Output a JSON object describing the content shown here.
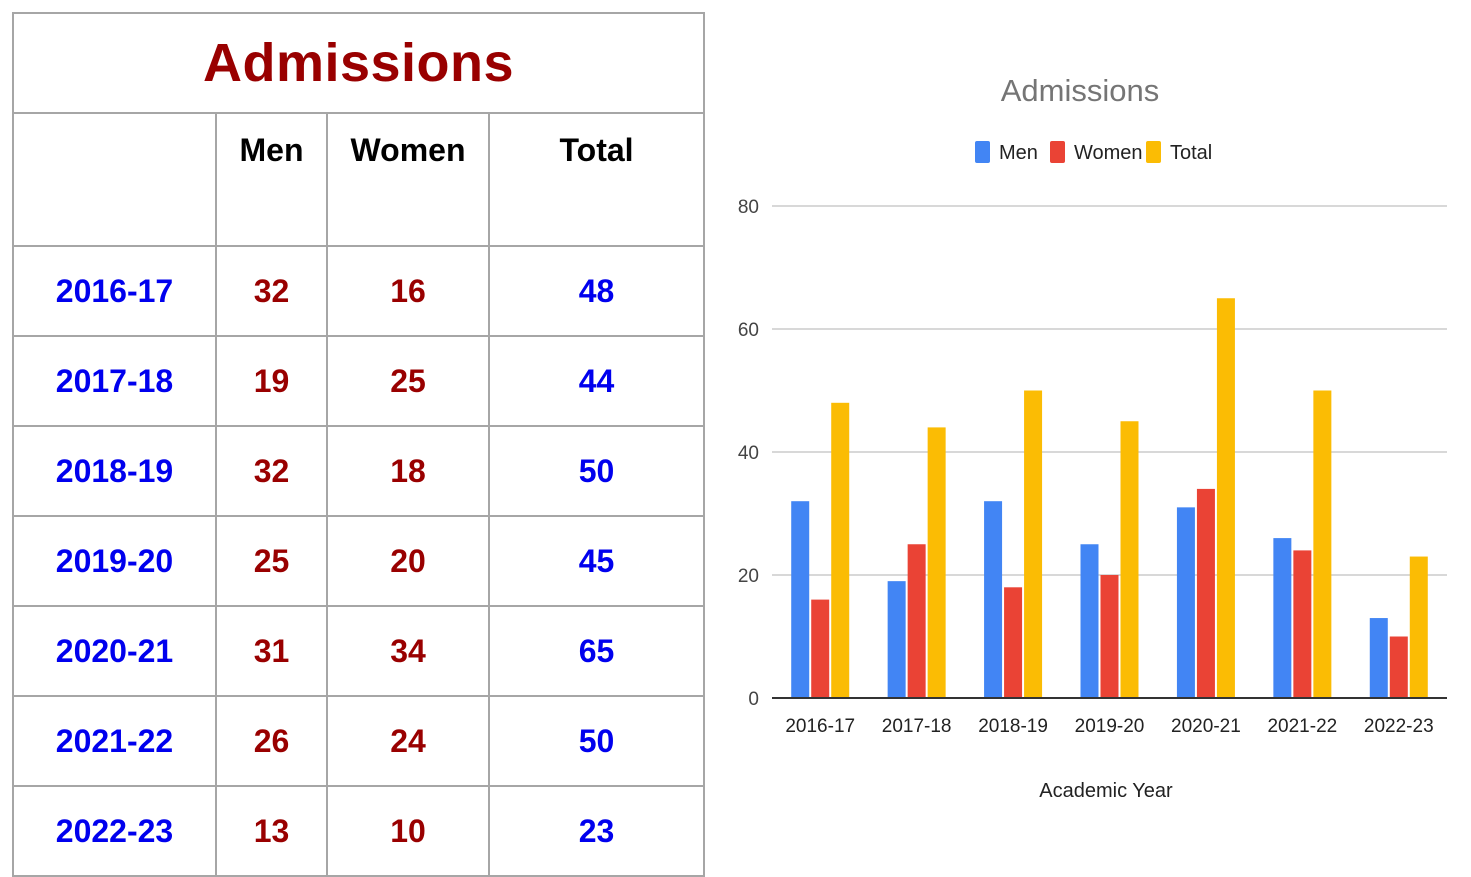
{
  "table": {
    "title": "Admissions",
    "headers": [
      "",
      "Men",
      "Women",
      "Total"
    ],
    "rows": [
      {
        "year": "2016-17",
        "men": "32",
        "women": "16",
        "total": "48"
      },
      {
        "year": "2017-18",
        "men": "19",
        "women": "25",
        "total": "44"
      },
      {
        "year": "2018-19",
        "men": "32",
        "women": "18",
        "total": "50"
      },
      {
        "year": "2019-20",
        "men": "25",
        "women": "20",
        "total": "45"
      },
      {
        "year": "2020-21",
        "men": "31",
        "women": "34",
        "total": "65"
      },
      {
        "year": "2021-22",
        "men": "26",
        "women": "24",
        "total": "50"
      },
      {
        "year": "2022-23",
        "men": "13",
        "women": "10",
        "total": "23"
      }
    ]
  },
  "chart_data": {
    "type": "bar",
    "title": "Admissions",
    "xlabel": "Academic Year",
    "ylabel": "",
    "categories": [
      "2016-17",
      "2017-18",
      "2018-19",
      "2019-20",
      "2020-21",
      "2021-22",
      "2022-23"
    ],
    "series": [
      {
        "name": "Men",
        "color": "#4285f4",
        "values": [
          32,
          19,
          32,
          25,
          31,
          26,
          13
        ]
      },
      {
        "name": "Women",
        "color": "#ea4335",
        "values": [
          16,
          25,
          18,
          20,
          34,
          24,
          10
        ]
      },
      {
        "name": "Total",
        "color": "#fbbc04",
        "values": [
          48,
          44,
          50,
          45,
          65,
          50,
          23
        ]
      }
    ],
    "ylim": [
      0,
      80
    ],
    "yticks": [
      0,
      20,
      40,
      60,
      80
    ],
    "grid": true,
    "legend": "top"
  }
}
